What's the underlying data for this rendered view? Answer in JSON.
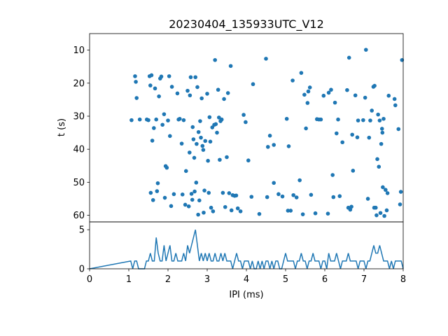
{
  "chart_data": [
    {
      "type": "scatter",
      "title": "20230404_135933UTC_V12",
      "xlabel": "",
      "ylabel": "t (s)",
      "xlim": [
        0,
        8
      ],
      "ylim": [
        62,
        5
      ],
      "y_inverted": true,
      "yticks": [
        10,
        20,
        30,
        40,
        50,
        60
      ],
      "color": "#1f77b4",
      "points": [
        [
          1.07,
          31.2
        ],
        [
          1.16,
          17.9
        ],
        [
          1.18,
          19.6
        ],
        [
          1.2,
          24.5
        ],
        [
          1.28,
          31.0
        ],
        [
          1.46,
          31.0
        ],
        [
          1.5,
          31.2
        ],
        [
          1.53,
          17.9
        ],
        [
          1.55,
          20.7
        ],
        [
          1.56,
          53.2
        ],
        [
          1.58,
          17.6
        ],
        [
          1.6,
          37.4
        ],
        [
          1.62,
          55.4
        ],
        [
          1.64,
          33.6
        ],
        [
          1.67,
          21.6
        ],
        [
          1.7,
          31.0
        ],
        [
          1.72,
          52.7
        ],
        [
          1.74,
          50.3
        ],
        [
          1.77,
          24.0
        ],
        [
          1.8,
          18.6
        ],
        [
          1.83,
          18.0
        ],
        [
          1.86,
          32.6
        ],
        [
          1.9,
          29.4
        ],
        [
          1.92,
          54.7
        ],
        [
          1.94,
          45.1
        ],
        [
          1.97,
          45.6
        ],
        [
          2.0,
          31.3
        ],
        [
          2.03,
          17.9
        ],
        [
          2.05,
          36.0
        ],
        [
          2.08,
          57.2
        ],
        [
          2.1,
          21.1
        ],
        [
          2.15,
          53.6
        ],
        [
          2.24,
          23.1
        ],
        [
          2.27,
          31.0
        ],
        [
          2.3,
          30.8
        ],
        [
          2.35,
          38.3
        ],
        [
          2.37,
          53.7
        ],
        [
          2.4,
          31.2
        ],
        [
          2.44,
          56.8
        ],
        [
          2.46,
          46.6
        ],
        [
          2.5,
          22.3
        ],
        [
          2.53,
          57.3
        ],
        [
          2.55,
          41.0
        ],
        [
          2.56,
          23.7
        ],
        [
          2.58,
          18.2
        ],
        [
          2.6,
          53.5
        ],
        [
          2.62,
          55.3
        ],
        [
          2.63,
          33.3
        ],
        [
          2.65,
          37.0
        ],
        [
          2.67,
          42.6
        ],
        [
          2.68,
          52.8
        ],
        [
          2.7,
          18.2
        ],
        [
          2.72,
          50.1
        ],
        [
          2.73,
          38.4
        ],
        [
          2.75,
          21.2
        ],
        [
          2.77,
          59.8
        ],
        [
          2.78,
          34.8
        ],
        [
          2.8,
          55.5
        ],
        [
          2.82,
          31.5
        ],
        [
          2.84,
          36.5
        ],
        [
          2.86,
          24.6
        ],
        [
          2.88,
          39.0
        ],
        [
          2.9,
          40.2
        ],
        [
          2.91,
          59.2
        ],
        [
          2.93,
          52.5
        ],
        [
          2.95,
          37.5
        ],
        [
          3.0,
          23.2
        ],
        [
          3.02,
          43.5
        ],
        [
          3.04,
          53.2
        ],
        [
          3.06,
          30.3
        ],
        [
          3.08,
          37.7
        ],
        [
          3.1,
          57.7
        ],
        [
          3.13,
          33.4
        ],
        [
          3.15,
          58.8
        ],
        [
          3.18,
          32.6
        ],
        [
          3.2,
          13.0
        ],
        [
          3.22,
          32.4
        ],
        [
          3.25,
          35.0
        ],
        [
          3.28,
          22.0
        ],
        [
          3.3,
          30.4
        ],
        [
          3.32,
          43.2
        ],
        [
          3.34,
          31.5
        ],
        [
          3.37,
          31.0
        ],
        [
          3.4,
          53.2
        ],
        [
          3.43,
          24.8
        ],
        [
          3.46,
          57.5
        ],
        [
          3.5,
          42.4
        ],
        [
          3.53,
          23.0
        ],
        [
          3.56,
          53.3
        ],
        [
          3.6,
          14.8
        ],
        [
          3.62,
          58.5
        ],
        [
          3.65,
          53.9
        ],
        [
          3.7,
          54.1
        ],
        [
          3.74,
          54.0
        ],
        [
          3.78,
          57.9
        ],
        [
          3.85,
          58.8
        ],
        [
          3.93,
          29.6
        ],
        [
          3.98,
          31.8
        ],
        [
          4.05,
          43.4
        ],
        [
          4.13,
          54.4
        ],
        [
          4.17,
          20.3
        ],
        [
          4.33,
          59.6
        ],
        [
          4.5,
          12.6
        ],
        [
          4.53,
          54.5
        ],
        [
          4.55,
          39.3
        ],
        [
          4.6,
          35.9
        ],
        [
          4.7,
          38.7
        ],
        [
          4.7,
          50.2
        ],
        [
          4.82,
          53.6
        ],
        [
          4.92,
          54.3
        ],
        [
          5.03,
          30.8
        ],
        [
          5.06,
          58.6
        ],
        [
          5.08,
          39.1
        ],
        [
          5.13,
          58.6
        ],
        [
          5.18,
          19.2
        ],
        [
          5.2,
          53.9
        ],
        [
          5.28,
          54.6
        ],
        [
          5.36,
          49.4
        ],
        [
          5.4,
          16.9
        ],
        [
          5.44,
          59.7
        ],
        [
          5.48,
          23.5
        ],
        [
          5.52,
          33.7
        ],
        [
          5.56,
          26.0
        ],
        [
          5.58,
          22.5
        ],
        [
          5.62,
          21.3
        ],
        [
          5.65,
          53.8
        ],
        [
          5.76,
          59.4
        ],
        [
          5.8,
          30.9
        ],
        [
          5.85,
          31.0
        ],
        [
          5.9,
          31.0
        ],
        [
          5.97,
          23.8
        ],
        [
          6.08,
          59.5
        ],
        [
          6.1,
          22.9
        ],
        [
          6.16,
          22.0
        ],
        [
          6.2,
          47.8
        ],
        [
          6.22,
          54.5
        ],
        [
          6.26,
          25.9
        ],
        [
          6.3,
          35.2
        ],
        [
          6.34,
          31.0
        ],
        [
          6.38,
          54.2
        ],
        [
          6.45,
          37.9
        ],
        [
          6.57,
          22.1
        ],
        [
          6.6,
          57.7
        ],
        [
          6.62,
          12.3
        ],
        [
          6.65,
          58.3
        ],
        [
          6.68,
          57.4
        ],
        [
          6.7,
          35.6
        ],
        [
          6.72,
          46.5
        ],
        [
          6.78,
          23.7
        ],
        [
          6.83,
          36.4
        ],
        [
          6.85,
          31.3
        ],
        [
          6.98,
          31.2
        ],
        [
          7.03,
          24.4
        ],
        [
          7.05,
          9.9
        ],
        [
          7.1,
          55.0
        ],
        [
          7.13,
          36.5
        ],
        [
          7.16,
          31.3
        ],
        [
          7.2,
          28.3
        ],
        [
          7.24,
          21.1
        ],
        [
          7.26,
          57.7
        ],
        [
          7.27,
          20.8
        ],
        [
          7.3,
          57.7
        ],
        [
          7.32,
          60.0
        ],
        [
          7.34,
          43.0
        ],
        [
          7.36,
          29.5
        ],
        [
          7.38,
          45.3
        ],
        [
          7.4,
          31.3
        ],
        [
          7.42,
          59.3
        ],
        [
          7.44,
          38.4
        ],
        [
          7.46,
          33.8
        ],
        [
          7.47,
          35.0
        ],
        [
          7.48,
          51.5
        ],
        [
          7.5,
          30.8
        ],
        [
          7.52,
          60.2
        ],
        [
          7.55,
          52.3
        ],
        [
          7.58,
          58.5
        ],
        [
          7.6,
          53.3
        ],
        [
          7.63,
          23.8
        ],
        [
          7.78,
          24.8
        ],
        [
          7.8,
          26.7
        ],
        [
          7.88,
          33.9
        ],
        [
          7.92,
          56.7
        ],
        [
          7.94,
          52.9
        ],
        [
          7.97,
          13.0
        ]
      ]
    },
    {
      "type": "line",
      "title": "",
      "xlabel": "IPI (ms)",
      "ylabel": "",
      "xlim": [
        0,
        8
      ],
      "ylim": [
        0,
        6
      ],
      "xticks": [
        0,
        1,
        2,
        3,
        4,
        5,
        6,
        7,
        8
      ],
      "yticks": [
        0,
        5
      ],
      "color": "#1f77b4",
      "x": [
        0.0,
        1.05,
        1.1,
        1.15,
        1.2,
        1.25,
        1.3,
        1.35,
        1.4,
        1.45,
        1.5,
        1.55,
        1.6,
        1.65,
        1.7,
        1.75,
        1.8,
        1.85,
        1.9,
        1.95,
        2.0,
        2.05,
        2.1,
        2.15,
        2.2,
        2.25,
        2.3,
        2.35,
        2.4,
        2.45,
        2.5,
        2.55,
        2.6,
        2.65,
        2.7,
        2.75,
        2.8,
        2.85,
        2.9,
        2.95,
        3.0,
        3.05,
        3.1,
        3.15,
        3.2,
        3.25,
        3.3,
        3.35,
        3.4,
        3.45,
        3.5,
        3.55,
        3.6,
        3.65,
        3.7,
        3.75,
        3.8,
        3.85,
        3.9,
        3.95,
        4.0,
        4.05,
        4.1,
        4.15,
        4.2,
        4.25,
        4.3,
        4.35,
        4.4,
        4.45,
        4.5,
        4.55,
        4.6,
        4.65,
        4.7,
        4.75,
        4.8,
        4.85,
        4.9,
        4.95,
        5.0,
        5.05,
        5.1,
        5.15,
        5.2,
        5.25,
        5.3,
        5.35,
        5.4,
        5.45,
        5.5,
        5.55,
        5.6,
        5.65,
        5.7,
        5.75,
        5.8,
        5.85,
        5.9,
        5.95,
        6.0,
        6.05,
        6.1,
        6.15,
        6.2,
        6.25,
        6.3,
        6.35,
        6.4,
        6.45,
        6.5,
        6.55,
        6.6,
        6.65,
        6.7,
        6.75,
        6.8,
        6.85,
        6.9,
        6.95,
        7.0,
        7.05,
        7.1,
        7.15,
        7.2,
        7.25,
        7.3,
        7.35,
        7.4,
        7.45,
        7.5,
        7.55,
        7.6,
        7.65,
        7.7,
        7.75,
        7.8,
        7.85,
        7.9,
        7.95,
        8.0
      ],
      "y": [
        0,
        1,
        0,
        1,
        1,
        0,
        0,
        0,
        0,
        1,
        1,
        2,
        1,
        1,
        4,
        2,
        1,
        1,
        3,
        1,
        2,
        3,
        1,
        1,
        2,
        1,
        1,
        1,
        2,
        1,
        3,
        2,
        3,
        4,
        5,
        3,
        1,
        2,
        1,
        2,
        1,
        2,
        1,
        1,
        2,
        1,
        1,
        2,
        1,
        2,
        1,
        1,
        1,
        0,
        1,
        2,
        1,
        1,
        0,
        1,
        1,
        1,
        0,
        1,
        0,
        0,
        1,
        0,
        1,
        0,
        1,
        1,
        0,
        1,
        0,
        1,
        1,
        0,
        0,
        1,
        2,
        1,
        1,
        1,
        1,
        0,
        1,
        1,
        2,
        1,
        1,
        0,
        1,
        1,
        2,
        1,
        1,
        1,
        0,
        1,
        1,
        0,
        2,
        1,
        1,
        1,
        2,
        1,
        0,
        1,
        1,
        1,
        2,
        1,
        1,
        1,
        1,
        0,
        1,
        1,
        1,
        0,
        1,
        1,
        2,
        3,
        2,
        2,
        3,
        2,
        1,
        1,
        1,
        0,
        1,
        0,
        1,
        1,
        1,
        1,
        0
      ]
    }
  ]
}
